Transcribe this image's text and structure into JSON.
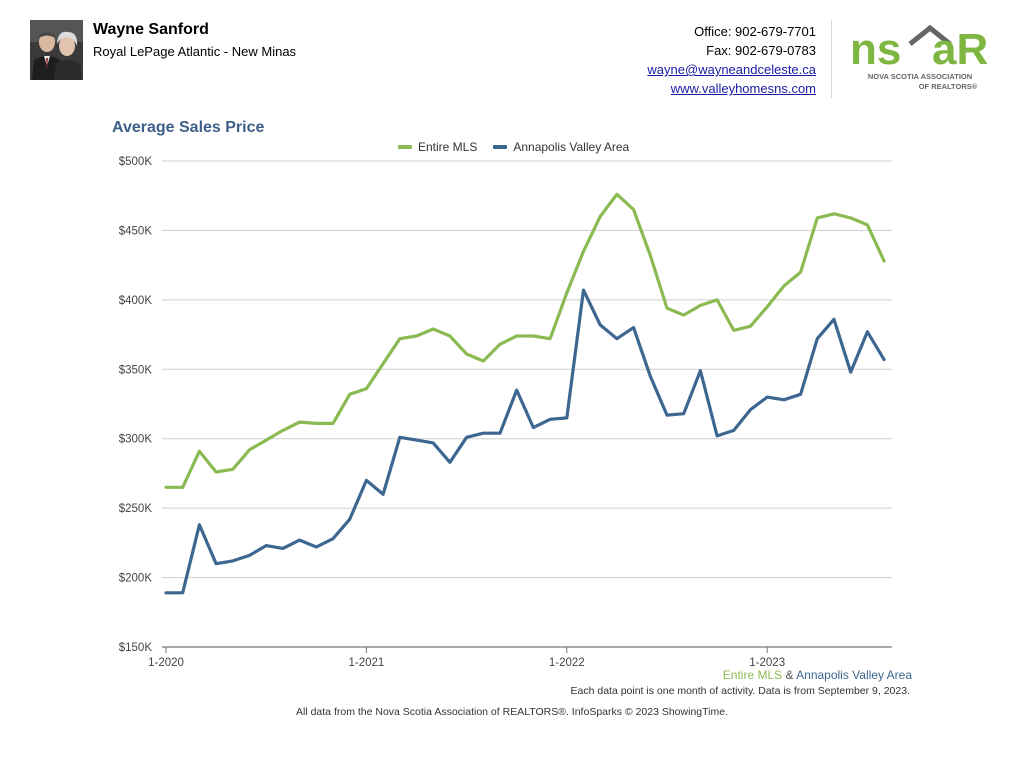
{
  "agent": {
    "name": "Wayne Sanford",
    "company": "Royal LePage Atlantic - New Minas"
  },
  "contact": {
    "office": "Office: 902-679-7701",
    "fax": "Fax: 902-679-0783",
    "email": "wayne@wayneandceleste.ca",
    "website": "www.valleyhomesns.com"
  },
  "logo": {
    "wordmark_left": "ns",
    "wordmark_right": "aR",
    "line1": "NOVA SCOTIA ASSOCIATION",
    "line2": "OF REALTORS®",
    "green": "#7db742",
    "gray": "#666666"
  },
  "footer": {
    "series_a": "Entire MLS",
    "amp": " & ",
    "series_b": "Annapolis Valley Area",
    "note": "Each data point is one month of activity. Data is from September 9, 2023.",
    "source": "All data from the Nova Scotia Association of REALTORS®. InfoSparks © 2023 ShowingTime."
  },
  "chart_data": {
    "type": "line",
    "title": "Average Sales Price",
    "xlabel": "",
    "ylabel": "",
    "ylim": [
      150000,
      500000
    ],
    "y_ticks": [
      150000,
      200000,
      250000,
      300000,
      350000,
      400000,
      450000,
      500000
    ],
    "y_tick_labels": [
      "$150K",
      "$200K",
      "$250K",
      "$300K",
      "$350K",
      "$400K",
      "$450K",
      "$500K"
    ],
    "x_tick_labels": [
      "1-2020",
      "1-2021",
      "1-2022",
      "1-2023"
    ],
    "x_tick_indices": [
      0,
      12,
      24,
      36
    ],
    "x_count": 44,
    "grid": true,
    "legend_position": "top-center",
    "series": [
      {
        "name": "Entire MLS",
        "color": "#8bba52",
        "values": [
          265000,
          265000,
          291000,
          276000,
          278000,
          292000,
          299000,
          306000,
          312000,
          311000,
          311000,
          332000,
          336000,
          354000,
          372000,
          374000,
          379000,
          374000,
          361000,
          356000,
          368000,
          374000,
          374000,
          372000,
          405000,
          435000,
          460000,
          476000,
          465000,
          432000,
          394000,
          389000,
          396000,
          400000,
          378000,
          381000,
          395000,
          410000,
          420000,
          459000,
          462000,
          459000,
          454000,
          428000
        ]
      },
      {
        "name": "Annapolis Valley Area",
        "color": "#3d6690",
        "values": [
          189000,
          189000,
          238000,
          210000,
          212000,
          216000,
          223000,
          221000,
          227000,
          222000,
          228000,
          242000,
          270000,
          260000,
          301000,
          299000,
          297000,
          283000,
          301000,
          304000,
          304000,
          335000,
          308000,
          314000,
          315000,
          407000,
          382000,
          372000,
          380000,
          345000,
          317000,
          318000,
          349000,
          302000,
          306000,
          321000,
          330000,
          328000,
          332000,
          372000,
          386000,
          348000,
          377000,
          357000
        ]
      }
    ]
  }
}
